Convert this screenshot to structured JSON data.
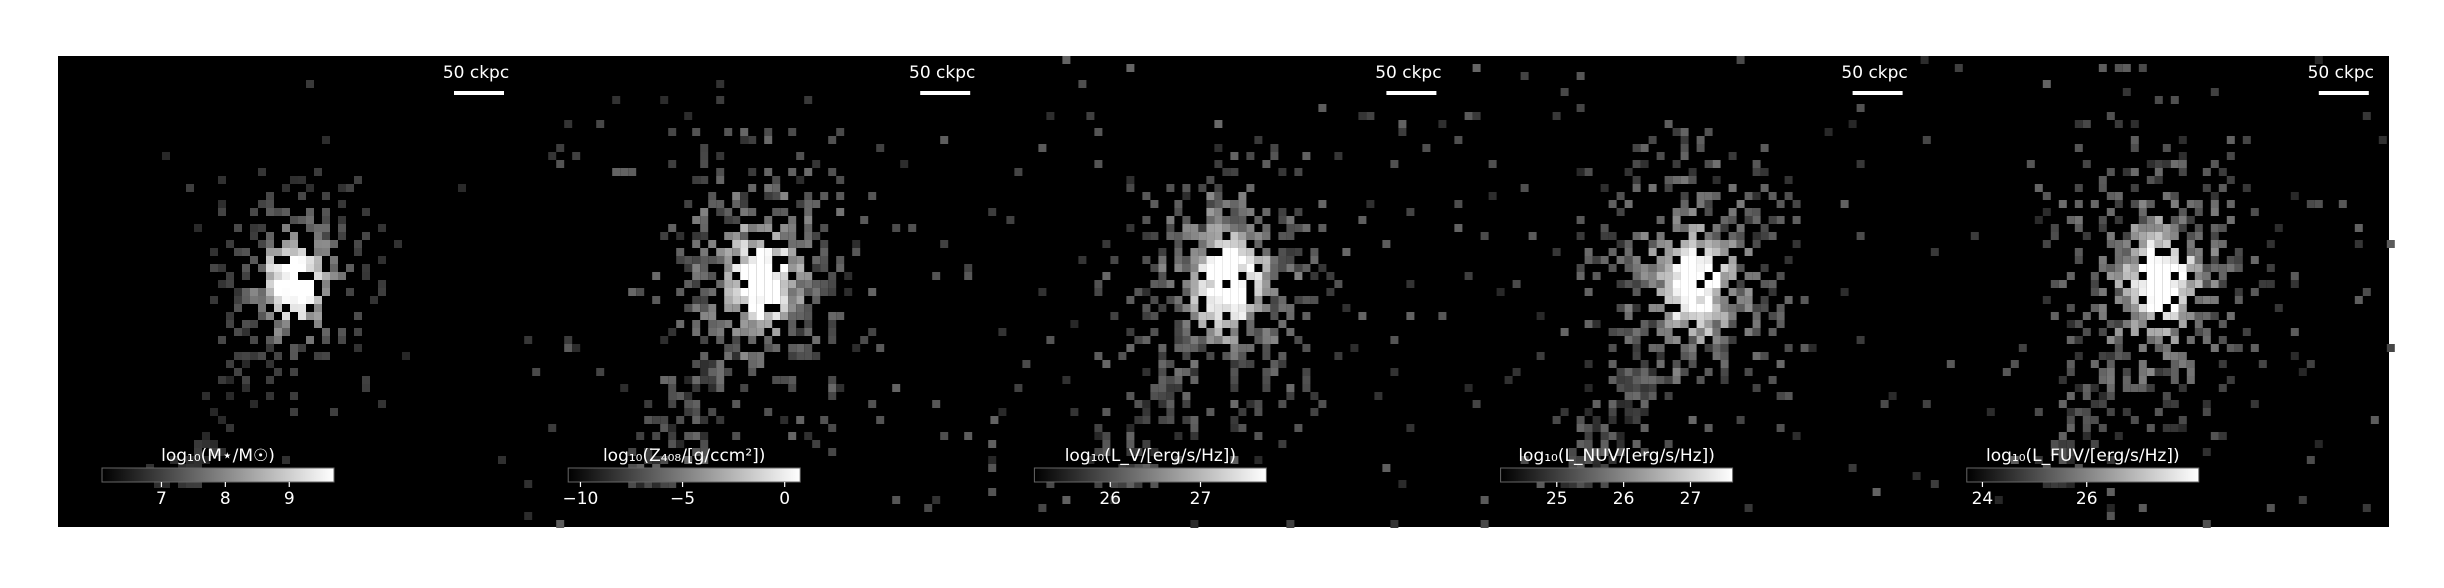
{
  "panels": [
    {
      "scale_label": "50 ckpc",
      "colorbar": {
        "label": "log₁₀(M⋆/M☉)",
        "clim": [
          6.07,
          9.7
        ],
        "ticks": [
          7,
          8,
          9
        ]
      }
    },
    {
      "scale_label": "50 ckpc",
      "colorbar": {
        "label": "log₁₀(Z₄₀₈/[g/ccm²])",
        "clim": [
          -10.6,
          0.76
        ],
        "ticks": [
          {
            "value": -10,
            "label": "−10"
          },
          {
            "value": -5,
            "label": "−5"
          },
          0
        ]
      }
    },
    {
      "scale_label": "50 ckpc",
      "colorbar": {
        "label": "log₁₀(L_V/[erg/s/Hz])",
        "clim": [
          25.16,
          27.73
        ],
        "ticks": [
          26,
          27
        ]
      }
    },
    {
      "scale_label": "50 ckpc",
      "colorbar": {
        "label": "log₁₀(L_NUV/[erg/s/Hz])",
        "clim": [
          24.16,
          27.63
        ],
        "ticks": [
          25,
          26,
          27
        ]
      }
    },
    {
      "scale_label": "50 ckpc",
      "colorbar": {
        "label": "log₁₀(L_FUV/[erg/s/Hz])",
        "clim": [
          23.7,
          28.15
        ],
        "ticks": [
          24,
          26
        ]
      }
    }
  ]
}
